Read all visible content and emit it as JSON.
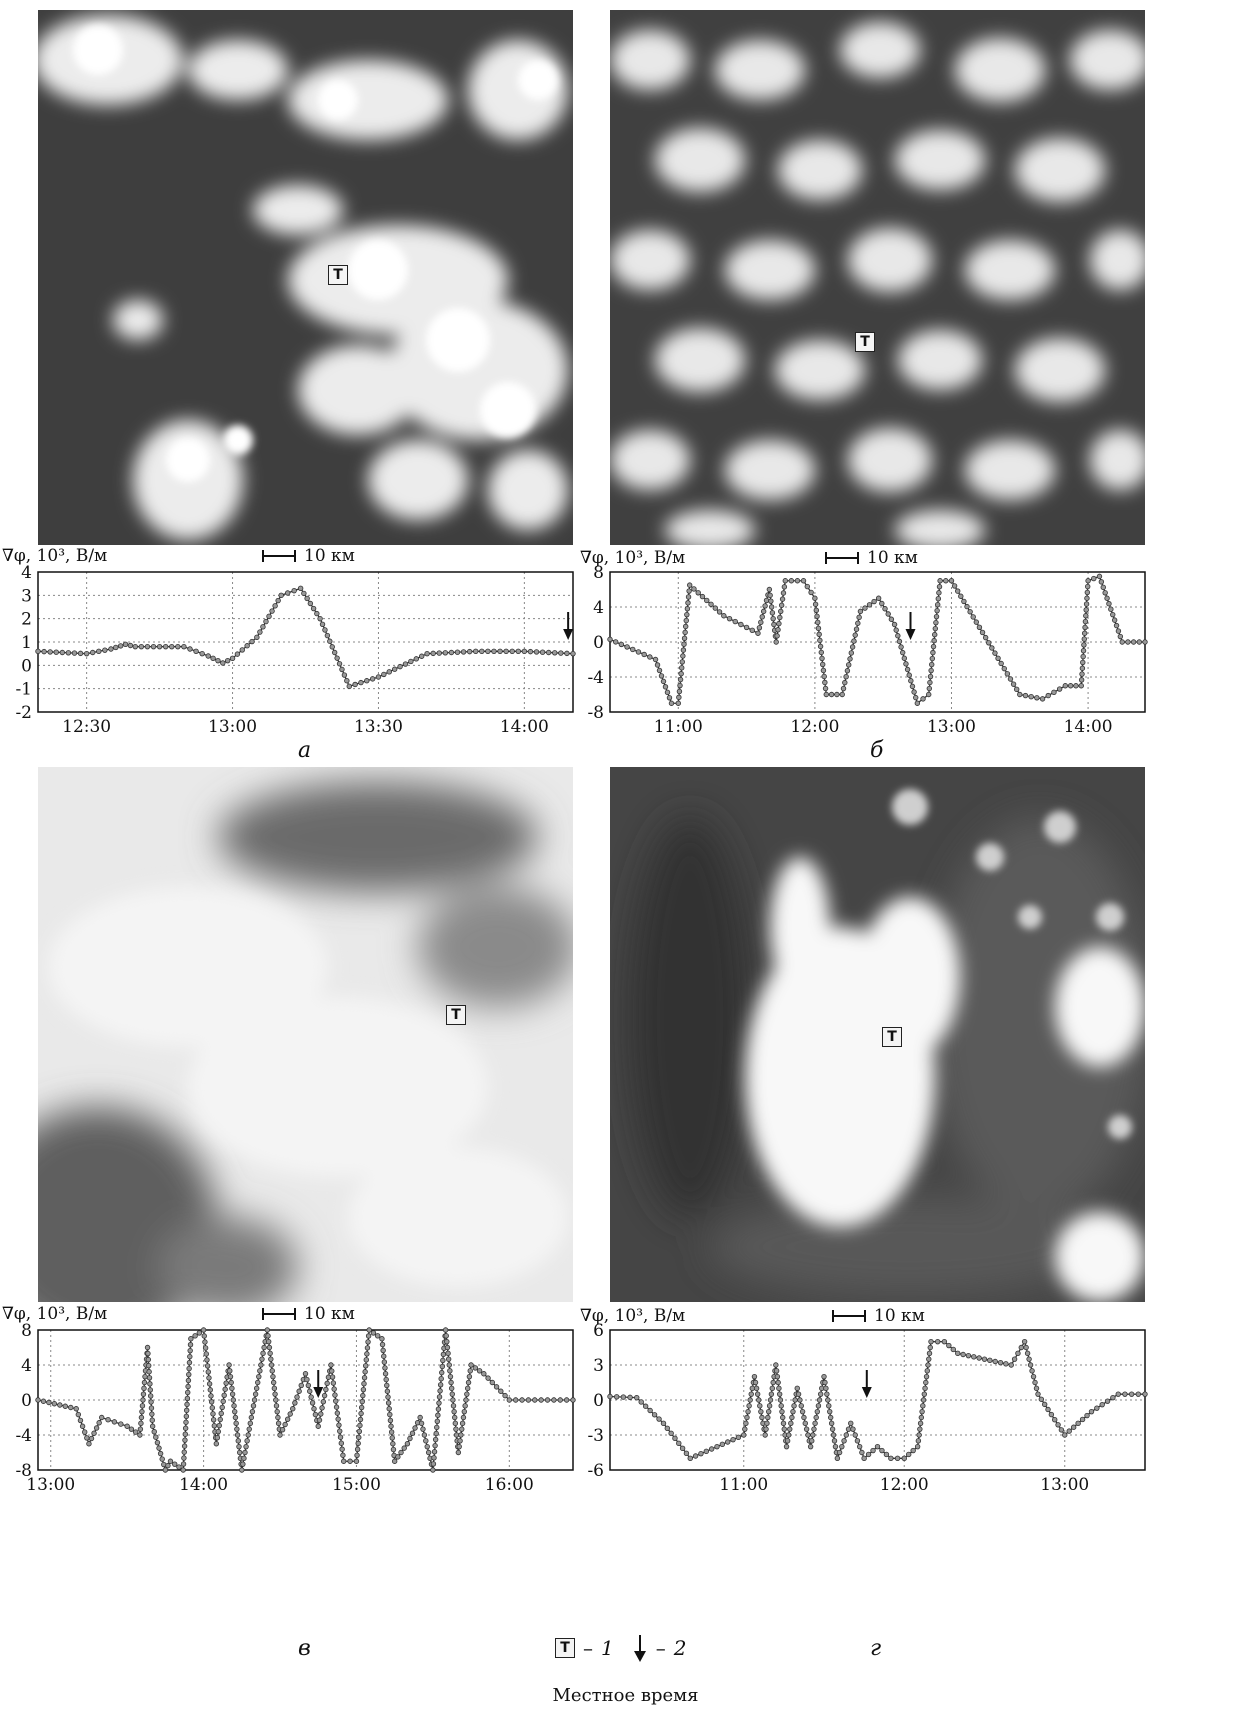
{
  "y_axis_label": "∇φ, 10³, В/м",
  "scale_label": "10 км",
  "target_marker": "T",
  "legend": {
    "target_symbol": "T",
    "target_num": "1",
    "arrow_num": "2",
    "dash": "–"
  },
  "footer_text": "Местное время",
  "panels": [
    {
      "label": "а",
      "scene": "broken cumulus over dark land"
    },
    {
      "label": "б",
      "scene": "scattered cumulus field"
    },
    {
      "label": "в",
      "scene": "overcast stratiform cloud"
    },
    {
      "label": "г",
      "scene": "isolated cumulonimbus cell"
    }
  ],
  "chart_data": [
    {
      "type": "line",
      "panel": "а",
      "ylabel": "∇φ, 10³, В/м",
      "ylim": [
        -2,
        4
      ],
      "yticks": [
        -2,
        -1,
        0,
        1,
        2,
        3,
        4
      ],
      "xlim": [
        "12:20",
        "14:10"
      ],
      "xticks": [
        "12:30",
        "13:00",
        "13:30",
        "14:00"
      ],
      "grid": true,
      "arrow_time": "14:09",
      "series": [
        {
          "x": [
            "12:20",
            "12:30",
            "12:35",
            "12:38",
            "12:40",
            "12:50",
            "12:55",
            "12:58",
            "13:00",
            "13:05",
            "13:10",
            "13:14",
            "13:18",
            "13:24",
            "13:30",
            "13:40",
            "13:50",
            "14:00",
            "14:10"
          ],
          "values": [
            0.6,
            0.5,
            0.7,
            0.9,
            0.8,
            0.8,
            0.4,
            0.1,
            0.3,
            1.2,
            3.0,
            3.3,
            2.0,
            -0.9,
            -0.5,
            0.5,
            0.6,
            0.6,
            0.5
          ]
        }
      ]
    },
    {
      "type": "line",
      "panel": "б",
      "ylabel": "∇φ, 10³, В/м",
      "ylim": [
        -8,
        8
      ],
      "yticks": [
        -8,
        -4,
        0,
        4,
        8
      ],
      "xlim": [
        "10:30",
        "14:25"
      ],
      "xticks": [
        "11:00",
        "12:00",
        "13:00",
        "14:00"
      ],
      "grid": true,
      "arrow_time": "12:42",
      "series": [
        {
          "x": [
            "10:30",
            "10:50",
            "10:57",
            "11:00",
            "11:05",
            "11:20",
            "11:35",
            "11:40",
            "11:43",
            "11:47",
            "11:55",
            "12:00",
            "12:05",
            "12:12",
            "12:20",
            "12:28",
            "12:35",
            "12:45",
            "12:50",
            "12:55",
            "13:00",
            "13:15",
            "13:30",
            "13:40",
            "13:50",
            "13:57",
            "14:00",
            "14:05",
            "14:15",
            "14:25"
          ],
          "values": [
            0.3,
            -2,
            -7,
            -7,
            6.5,
            3,
            1,
            6,
            0,
            7,
            7,
            5,
            -6,
            -6,
            3.5,
            5,
            2,
            -7,
            -6,
            7,
            7,
            0.5,
            -6,
            -6.5,
            -5,
            -5,
            7,
            7.5,
            0,
            0
          ]
        }
      ]
    },
    {
      "type": "line",
      "panel": "в",
      "ylabel": "∇φ, 10³, В/м",
      "ylim": [
        -8,
        8
      ],
      "yticks": [
        -8,
        -4,
        0,
        4,
        8
      ],
      "xlim": [
        "12:55",
        "16:25"
      ],
      "xticks": [
        "13:00",
        "14:00",
        "15:00",
        "16:00"
      ],
      "grid": true,
      "arrow_time": "14:45",
      "series": [
        {
          "x": [
            "12:55",
            "13:10",
            "13:15",
            "13:20",
            "13:30",
            "13:35",
            "13:38",
            "13:40",
            "13:45",
            "13:47",
            "13:52",
            "13:55",
            "14:00",
            "14:05",
            "14:10",
            "14:15",
            "14:20",
            "14:25",
            "14:30",
            "14:35",
            "14:40",
            "14:45",
            "14:50",
            "14:55",
            "15:00",
            "15:05",
            "15:10",
            "15:15",
            "15:20",
            "15:25",
            "15:30",
            "15:35",
            "15:40",
            "15:45",
            "15:50",
            "16:00",
            "16:10",
            "16:25"
          ],
          "values": [
            0,
            -1,
            -5,
            -2,
            -3,
            -4,
            6,
            -3,
            -8,
            -7,
            -8,
            7,
            8,
            -5,
            4,
            -8,
            0,
            8,
            -4,
            -1,
            3,
            -3,
            4,
            -7,
            -7,
            8,
            7,
            -7,
            -5,
            -2,
            -8,
            8,
            -6,
            4,
            3,
            0,
            0,
            0
          ]
        }
      ]
    },
    {
      "type": "line",
      "panel": "г",
      "ylabel": "∇φ, 10³, В/м",
      "ylim": [
        -6,
        6
      ],
      "yticks": [
        -6,
        -3,
        0,
        3,
        6
      ],
      "xlim": [
        "10:10",
        "13:30"
      ],
      "xticks": [
        "11:00",
        "12:00",
        "13:00"
      ],
      "grid": true,
      "arrow_time": "11:46",
      "series": [
        {
          "x": [
            "10:10",
            "10:20",
            "10:30",
            "10:40",
            "10:50",
            "11:00",
            "11:04",
            "11:08",
            "11:12",
            "11:16",
            "11:20",
            "11:25",
            "11:30",
            "11:35",
            "11:40",
            "11:45",
            "11:50",
            "11:55",
            "12:00",
            "12:05",
            "12:10",
            "12:15",
            "12:20",
            "12:30",
            "12:40",
            "12:45",
            "12:50",
            "13:00",
            "13:10",
            "13:20",
            "13:30"
          ],
          "values": [
            0.3,
            0.2,
            -2,
            -5,
            -4,
            -3,
            2,
            -3,
            3,
            -4,
            1,
            -4,
            2,
            -5,
            -2,
            -5,
            -4,
            -5,
            -5,
            -4,
            5,
            5,
            4,
            3.5,
            3,
            5,
            0.5,
            -3,
            -1,
            0.5,
            0.5
          ]
        }
      ]
    }
  ]
}
